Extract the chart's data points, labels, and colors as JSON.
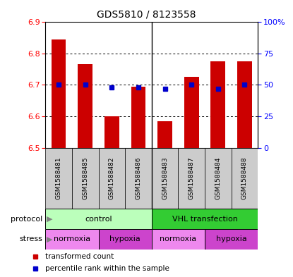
{
  "title": "GDS5810 / 8123558",
  "samples": [
    "GSM1588481",
    "GSM1588485",
    "GSM1588482",
    "GSM1588486",
    "GSM1588483",
    "GSM1588487",
    "GSM1588484",
    "GSM1588488"
  ],
  "bar_values": [
    6.845,
    6.765,
    6.6,
    6.695,
    6.585,
    6.725,
    6.775,
    6.775
  ],
  "percentile_values": [
    50,
    50,
    48,
    48,
    47,
    50,
    47,
    50
  ],
  "ylim_left": [
    6.5,
    6.9
  ],
  "ylim_right": [
    0,
    100
  ],
  "yticks_left": [
    6.5,
    6.6,
    6.7,
    6.8,
    6.9
  ],
  "yticks_right": [
    0,
    25,
    50,
    75,
    100
  ],
  "ytick_labels_right": [
    "0",
    "25",
    "50",
    "75",
    "100%"
  ],
  "bar_color": "#cc0000",
  "percentile_color": "#0000cc",
  "protocol_groups": [
    {
      "label": "control",
      "start": 0,
      "end": 4,
      "color": "#bbffbb"
    },
    {
      "label": "VHL transfection",
      "start": 4,
      "end": 8,
      "color": "#33cc33"
    }
  ],
  "stress_groups": [
    {
      "label": "normoxia",
      "start": 0,
      "end": 2,
      "color": "#ee88ee"
    },
    {
      "label": "hypoxia",
      "start": 2,
      "end": 4,
      "color": "#cc44cc"
    },
    {
      "label": "normoxia",
      "start": 4,
      "end": 6,
      "color": "#ee88ee"
    },
    {
      "label": "hypoxia",
      "start": 6,
      "end": 8,
      "color": "#cc44cc"
    }
  ],
  "legend_items": [
    {
      "label": "transformed count",
      "color": "#cc0000"
    },
    {
      "label": "percentile rank within the sample",
      "color": "#0000cc"
    }
  ],
  "sample_bg_color": "#cccccc",
  "bar_width": 0.55,
  "base_value": 6.5
}
